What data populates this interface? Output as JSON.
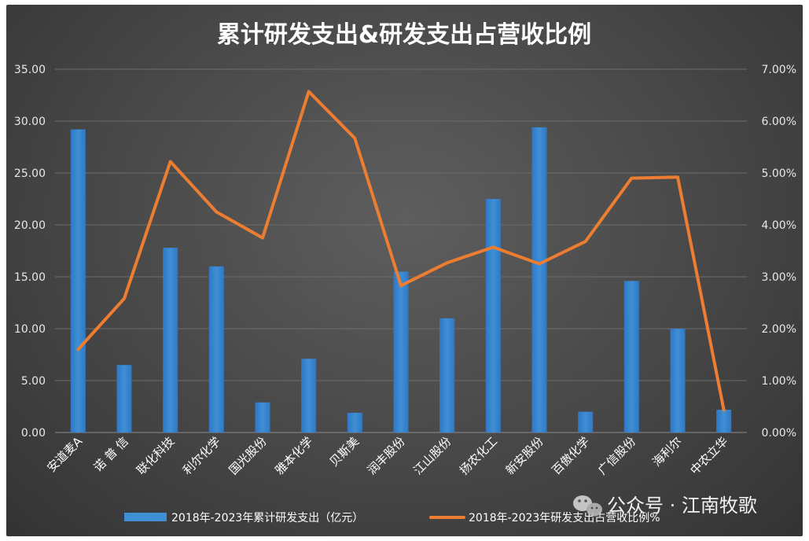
{
  "chart_data": {
    "type": "bar",
    "title": "累计研发支出&研发支出占营收比例",
    "categories": [
      "安道麦A",
      "诺 普 信",
      "联化科技",
      "利尔化学",
      "国光股份",
      "雅本化学",
      "贝斯美",
      "润丰股份",
      "江山股份",
      "扬农化工",
      "新安股份",
      "百傲化学",
      "广信股份",
      "海利尔",
      "中农立华"
    ],
    "series": [
      {
        "name": "2018年-2023年累计研发支出（亿元）",
        "type": "bar",
        "axis": "left",
        "color": "#3f8fd6",
        "values": [
          29.2,
          6.5,
          17.8,
          16.0,
          2.9,
          7.1,
          1.9,
          15.5,
          11.0,
          22.5,
          29.4,
          2.0,
          14.6,
          10.0,
          2.2
        ]
      },
      {
        "name": "2018年-2023年研发支出占营收比例%",
        "type": "line",
        "axis": "right",
        "color": "#ed7d31",
        "values": [
          1.6,
          2.58,
          5.22,
          4.25,
          3.75,
          6.57,
          5.67,
          2.83,
          3.27,
          3.57,
          3.25,
          3.68,
          4.9,
          4.92,
          0.43
        ]
      }
    ],
    "y_left": {
      "range": [
        0,
        35
      ],
      "ticks": [
        "0.00",
        "5.00",
        "10.00",
        "15.00",
        "20.00",
        "25.00",
        "30.00",
        "35.00"
      ]
    },
    "y_right": {
      "range": [
        0,
        7
      ],
      "ticks": [
        "0.00%",
        "1.00%",
        "2.00%",
        "3.00%",
        "4.00%",
        "5.00%",
        "6.00%",
        "7.00%"
      ]
    },
    "grid": true,
    "legend_position": "bottom",
    "xlabel": "",
    "ylabel": ""
  },
  "watermark": {
    "text": "公众号 · 江南牧歌",
    "icon": "wechat-icon"
  }
}
